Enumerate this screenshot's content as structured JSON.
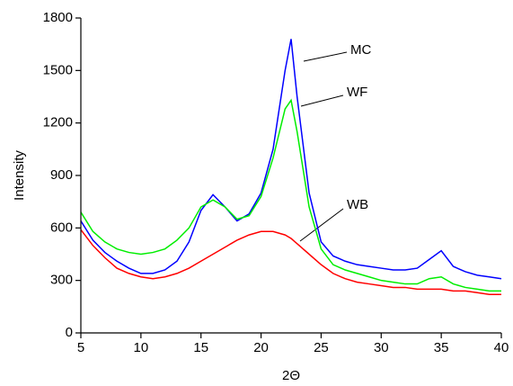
{
  "chart_data": {
    "type": "line",
    "xlabel": "2Θ",
    "ylabel": "Intensity",
    "x": [
      5,
      6,
      7,
      8,
      9,
      10,
      11,
      12,
      13,
      14,
      15,
      16,
      17,
      18,
      19,
      20,
      21,
      22,
      22.5,
      23,
      24,
      25,
      26,
      27,
      28,
      29,
      30,
      31,
      32,
      33,
      34,
      35,
      36,
      37,
      38,
      39,
      40
    ],
    "series": [
      {
        "name": "MC",
        "color": "#0000ff",
        "values": [
          640,
          530,
          460,
          410,
          370,
          340,
          340,
          360,
          410,
          520,
          700,
          790,
          720,
          640,
          680,
          800,
          1050,
          1500,
          1680,
          1350,
          800,
          520,
          440,
          410,
          390,
          380,
          370,
          360,
          360,
          370,
          420,
          470,
          380,
          350,
          330,
          320,
          310
        ]
      },
      {
        "name": "WF",
        "color": "#00ee00",
        "values": [
          690,
          580,
          520,
          480,
          460,
          450,
          460,
          480,
          530,
          600,
          720,
          760,
          720,
          650,
          670,
          780,
          1000,
          1280,
          1330,
          1150,
          720,
          480,
          390,
          360,
          340,
          320,
          300,
          290,
          280,
          280,
          310,
          320,
          280,
          260,
          250,
          240,
          240
        ]
      },
      {
        "name": "WB",
        "color": "#ff0000",
        "values": [
          590,
          500,
          430,
          370,
          340,
          320,
          310,
          320,
          340,
          370,
          410,
          450,
          490,
          530,
          560,
          580,
          580,
          560,
          540,
          510,
          450,
          390,
          340,
          310,
          290,
          280,
          270,
          260,
          260,
          250,
          250,
          250,
          240,
          240,
          230,
          220,
          220
        ]
      }
    ],
    "xlim": [
      5,
      40
    ],
    "xticks": [
      5,
      10,
      15,
      20,
      25,
      30,
      35,
      40
    ],
    "ylim": [
      0,
      1800
    ],
    "yticks": [
      0,
      300,
      600,
      900,
      1200,
      1500,
      1800
    ]
  }
}
